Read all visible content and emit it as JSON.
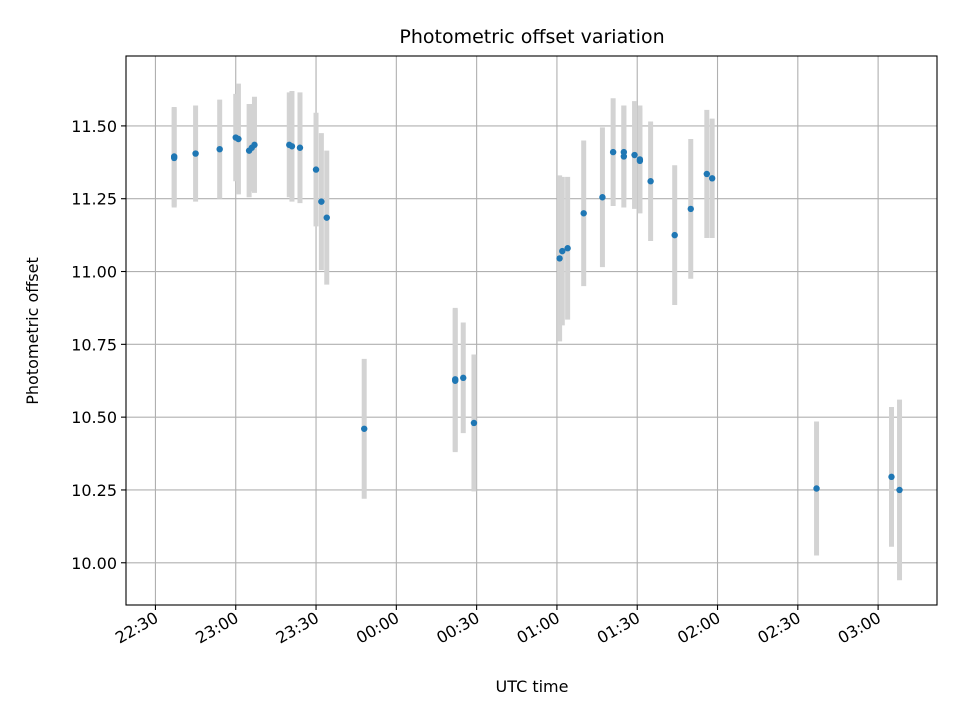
{
  "chart_data": {
    "type": "scatter",
    "title": "Photometric offset variation",
    "xlabel": "UTC time",
    "ylabel": "Photometric offset",
    "grid": true,
    "xlim": [
      "22:19",
      "03:22"
    ],
    "ylim": [
      9.855,
      11.74
    ],
    "x_ticks": [
      "22:30",
      "23:00",
      "23:30",
      "00:00",
      "00:30",
      "01:00",
      "01:30",
      "02:00",
      "02:30",
      "03:00"
    ],
    "y_ticks": [
      "10.00",
      "10.25",
      "10.50",
      "10.75",
      "11.00",
      "11.25",
      "11.50"
    ],
    "colors": {
      "points": "#1f77b4",
      "error_bars": "#d3d3d3",
      "grid": "#b0b0b0"
    },
    "points": [
      {
        "time": "22:37",
        "y": 11.395,
        "yerr": 0.17
      },
      {
        "time": "22:37",
        "y": 11.39,
        "yerr": 0.17
      },
      {
        "time": "22:45",
        "y": 11.405,
        "yerr": 0.165
      },
      {
        "time": "22:54",
        "y": 11.42,
        "yerr": 0.17
      },
      {
        "time": "23:00",
        "y": 11.46,
        "yerr": 0.15
      },
      {
        "time": "23:01",
        "y": 11.455,
        "yerr": 0.19
      },
      {
        "time": "23:05",
        "y": 11.415,
        "yerr": 0.16
      },
      {
        "time": "23:06",
        "y": 11.425,
        "yerr": 0.15
      },
      {
        "time": "23:07",
        "y": 11.435,
        "yerr": 0.165
      },
      {
        "time": "23:20",
        "y": 11.435,
        "yerr": 0.18
      },
      {
        "time": "23:21",
        "y": 11.43,
        "yerr": 0.19
      },
      {
        "time": "23:24",
        "y": 11.425,
        "yerr": 0.19
      },
      {
        "time": "23:30",
        "y": 11.35,
        "yerr": 0.195
      },
      {
        "time": "23:32",
        "y": 11.24,
        "yerr": 0.235
      },
      {
        "time": "23:34",
        "y": 11.185,
        "yerr": 0.23
      },
      {
        "time": "23:48",
        "y": 10.46,
        "yerr": 0.24
      },
      {
        "time": "00:22",
        "y": 10.63,
        "yerr": 0.245
      },
      {
        "time": "00:22",
        "y": 10.625,
        "yerr": 0.245
      },
      {
        "time": "00:25",
        "y": 10.635,
        "yerr": 0.19
      },
      {
        "time": "00:29",
        "y": 10.48,
        "yerr": 0.235
      },
      {
        "time": "01:01",
        "y": 11.045,
        "yerr": 0.285
      },
      {
        "time": "01:02",
        "y": 11.07,
        "yerr": 0.255
      },
      {
        "time": "01:04",
        "y": 11.08,
        "yerr": 0.245
      },
      {
        "time": "01:10",
        "y": 11.2,
        "yerr": 0.25
      },
      {
        "time": "01:17",
        "y": 11.255,
        "yerr": 0.24
      },
      {
        "time": "01:21",
        "y": 11.41,
        "yerr": 0.185
      },
      {
        "time": "01:25",
        "y": 11.395,
        "yerr": 0.175
      },
      {
        "time": "01:25",
        "y": 11.41,
        "yerr": 0.16
      },
      {
        "time": "01:29",
        "y": 11.4,
        "yerr": 0.185
      },
      {
        "time": "01:31",
        "y": 11.385,
        "yerr": 0.185
      },
      {
        "time": "01:31",
        "y": 11.38,
        "yerr": 0.18
      },
      {
        "time": "01:35",
        "y": 11.31,
        "yerr": 0.205
      },
      {
        "time": "01:44",
        "y": 11.125,
        "yerr": 0.24
      },
      {
        "time": "01:50",
        "y": 11.215,
        "yerr": 0.24
      },
      {
        "time": "01:56",
        "y": 11.335,
        "yerr": 0.22
      },
      {
        "time": "01:58",
        "y": 11.32,
        "yerr": 0.205
      },
      {
        "time": "02:37",
        "y": 10.255,
        "yerr": 0.23
      },
      {
        "time": "03:05",
        "y": 10.295,
        "yerr": 0.24
      },
      {
        "time": "03:08",
        "y": 10.25,
        "yerr": 0.31
      }
    ]
  }
}
